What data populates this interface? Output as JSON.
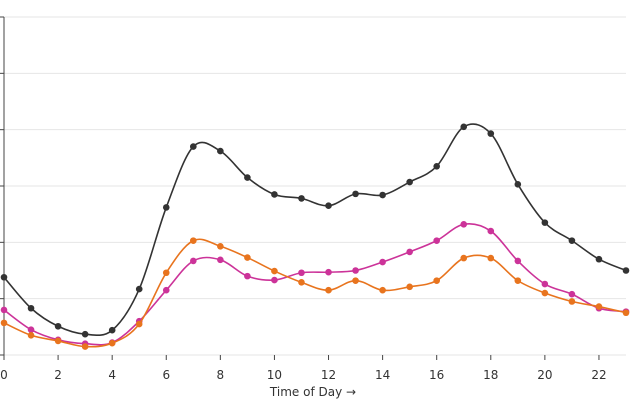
{
  "chart_data": {
    "type": "line",
    "xlabel": "Time of Day →",
    "ylabel": "",
    "x": [
      0,
      1,
      2,
      3,
      4,
      5,
      6,
      7,
      8,
      9,
      10,
      11,
      12,
      13,
      14,
      15,
      16,
      17,
      18,
      19,
      20,
      21,
      22,
      23
    ],
    "xlim": [
      0,
      23
    ],
    "ylim": [
      0,
      6
    ],
    "x_ticks": [
      0,
      2,
      4,
      6,
      8,
      10,
      12,
      14,
      16,
      18,
      20,
      22
    ],
    "y_ticks": [
      0,
      1,
      2,
      3,
      4,
      5,
      6
    ],
    "y_tick_labels_visible": false,
    "grid": "horizontal",
    "legend": "none",
    "series": [
      {
        "color": "#333333",
        "values": [
          1.38,
          0.83,
          0.51,
          0.37,
          0.44,
          1.17,
          2.62,
          3.7,
          3.62,
          3.15,
          2.85,
          2.78,
          2.65,
          2.86,
          2.84,
          3.07,
          3.35,
          4.05,
          3.93,
          3.03,
          2.35,
          2.03,
          1.7,
          1.5
        ]
      },
      {
        "color": "#cc3399",
        "values": [
          0.8,
          0.45,
          0.27,
          0.2,
          0.22,
          0.6,
          1.15,
          1.67,
          1.69,
          1.4,
          1.33,
          1.46,
          1.47,
          1.5,
          1.65,
          1.83,
          2.03,
          2.32,
          2.2,
          1.67,
          1.26,
          1.08,
          0.83,
          0.77
        ]
      },
      {
        "color": "#e8741e",
        "values": [
          0.57,
          0.35,
          0.25,
          0.15,
          0.21,
          0.55,
          1.46,
          2.03,
          1.93,
          1.73,
          1.49,
          1.29,
          1.15,
          1.32,
          1.15,
          1.21,
          1.32,
          1.72,
          1.72,
          1.32,
          1.1,
          0.95,
          0.86,
          0.75
        ]
      }
    ]
  }
}
